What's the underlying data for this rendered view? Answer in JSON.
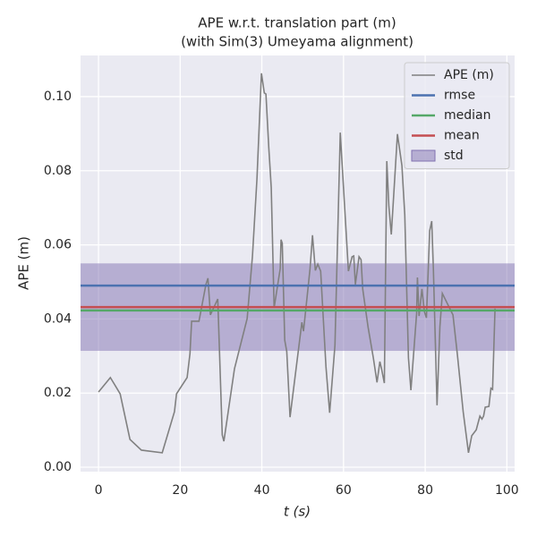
{
  "chart_data": {
    "type": "line",
    "title": "APE w.r.t. translation part (m)",
    "subtitle": "(with Sim(3) Umeyama alignment)",
    "xlabel": "t (s)",
    "ylabel": "APE (m)",
    "xlim": [
      -4.4,
      101.9
    ],
    "xticks": [
      0,
      20,
      40,
      60,
      80,
      100
    ],
    "ylim": [
      -0.0012,
      0.1111
    ],
    "yticks": [
      {
        "value": 0,
        "label": "0.00"
      },
      0.02,
      0.04,
      0.06,
      0.08,
      {
        "value": 0.1,
        "label": "0.10"
      }
    ],
    "grid": true,
    "legend": "upper right",
    "series": [
      {
        "name": "APE (m)",
        "type": "line",
        "color": "#808080",
        "x": [
          0,
          2.9,
          5.3,
          7.7,
          10.5,
          15.6,
          18.6,
          19.1,
          21.7,
          22.4,
          22.8,
          24.6,
          26.3,
          26.8,
          27.4,
          29.2,
          30.3,
          30.7,
          33.3,
          36.4,
          37.7,
          38.8,
          39.9,
          40.6,
          41.0,
          41.7,
          42.3,
          43.0,
          44.5,
          44.7,
          45.0,
          45.6,
          46.1,
          46.9,
          49.8,
          50.2,
          51.8,
          52.4,
          53.1,
          53.7,
          54.4,
          55.7,
          56.6,
          57.9,
          59.2,
          61.2,
          62.1,
          62.5,
          62.9,
          63.8,
          64.3,
          64.7,
          66.0,
          67.3,
          68.2,
          68.9,
          69.3,
          70.0,
          70.6,
          71.1,
          71.7,
          72.4,
          73.2,
          74.3,
          75.0,
          75.9,
          76.5,
          77.9,
          78.1,
          78.5,
          79.2,
          79.8,
          80.3,
          81.1,
          81.6,
          82.0,
          82.9,
          83.6,
          84.2,
          85.5,
          86.8,
          87.9,
          89.3,
          90.6,
          91.4,
          92.5,
          93.4,
          93.9,
          94.3,
          94.7,
          95.6,
          96.1,
          96.5,
          97.1
        ],
        "values": [
          0.0203,
          0.0242,
          0.0198,
          0.0075,
          0.0046,
          0.0039,
          0.015,
          0.0198,
          0.0242,
          0.0307,
          0.0394,
          0.0394,
          0.0493,
          0.051,
          0.0411,
          0.0454,
          0.0087,
          0.007,
          0.0266,
          0.0401,
          0.057,
          0.0778,
          0.1063,
          0.101,
          0.1007,
          0.0862,
          0.0754,
          0.043,
          0.0536,
          0.0614,
          0.0604,
          0.0343,
          0.0312,
          0.0135,
          0.0391,
          0.0367,
          0.0536,
          0.0626,
          0.0531,
          0.0548,
          0.0529,
          0.0271,
          0.0147,
          0.0329,
          0.0903,
          0.0529,
          0.0568,
          0.057,
          0.0493,
          0.0568,
          0.056,
          0.0481,
          0.0379,
          0.0295,
          0.0229,
          0.0285,
          0.0266,
          0.0227,
          0.0826,
          0.0705,
          0.0628,
          0.0754,
          0.0899,
          0.0814,
          0.0681,
          0.0295,
          0.0208,
          0.0415,
          0.0512,
          0.0408,
          0.0481,
          0.042,
          0.0403,
          0.0638,
          0.0664,
          0.0536,
          0.0167,
          0.0379,
          0.0469,
          0.044,
          0.0411,
          0.0302,
          0.015,
          0.0039,
          0.0085,
          0.0101,
          0.0138,
          0.013,
          0.0138,
          0.0162,
          0.0164,
          0.0213,
          0.021,
          0.0428
        ]
      },
      {
        "name": "rmse",
        "type": "hline",
        "color": "#4c72b0",
        "value": 0.049
      },
      {
        "name": "median",
        "type": "hline",
        "color": "#55a868",
        "value": 0.0423
      },
      {
        "name": "mean",
        "type": "hline",
        "color": "#c44e52",
        "value": 0.0432
      },
      {
        "name": "std",
        "type": "band",
        "color": "#8172b2",
        "value": 0.0118
      }
    ]
  }
}
